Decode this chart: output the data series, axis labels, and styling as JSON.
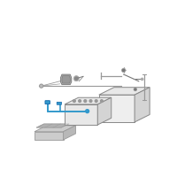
{
  "bg_color": "#ffffff",
  "line_color": "#999999",
  "dark_line": "#777777",
  "blue_color": "#3399cc",
  "box_face_light": "#e8e8e8",
  "box_face_mid": "#d4d4d4",
  "box_face_dark": "#c8c8c8",
  "box_edge": "#888888",
  "tray_face": "#cccccc",
  "tray_inner": "#b8b8b8",
  "connector_dark": "#666666",
  "bolt_color": "#aaaaaa",
  "bracket_color": "#888888"
}
